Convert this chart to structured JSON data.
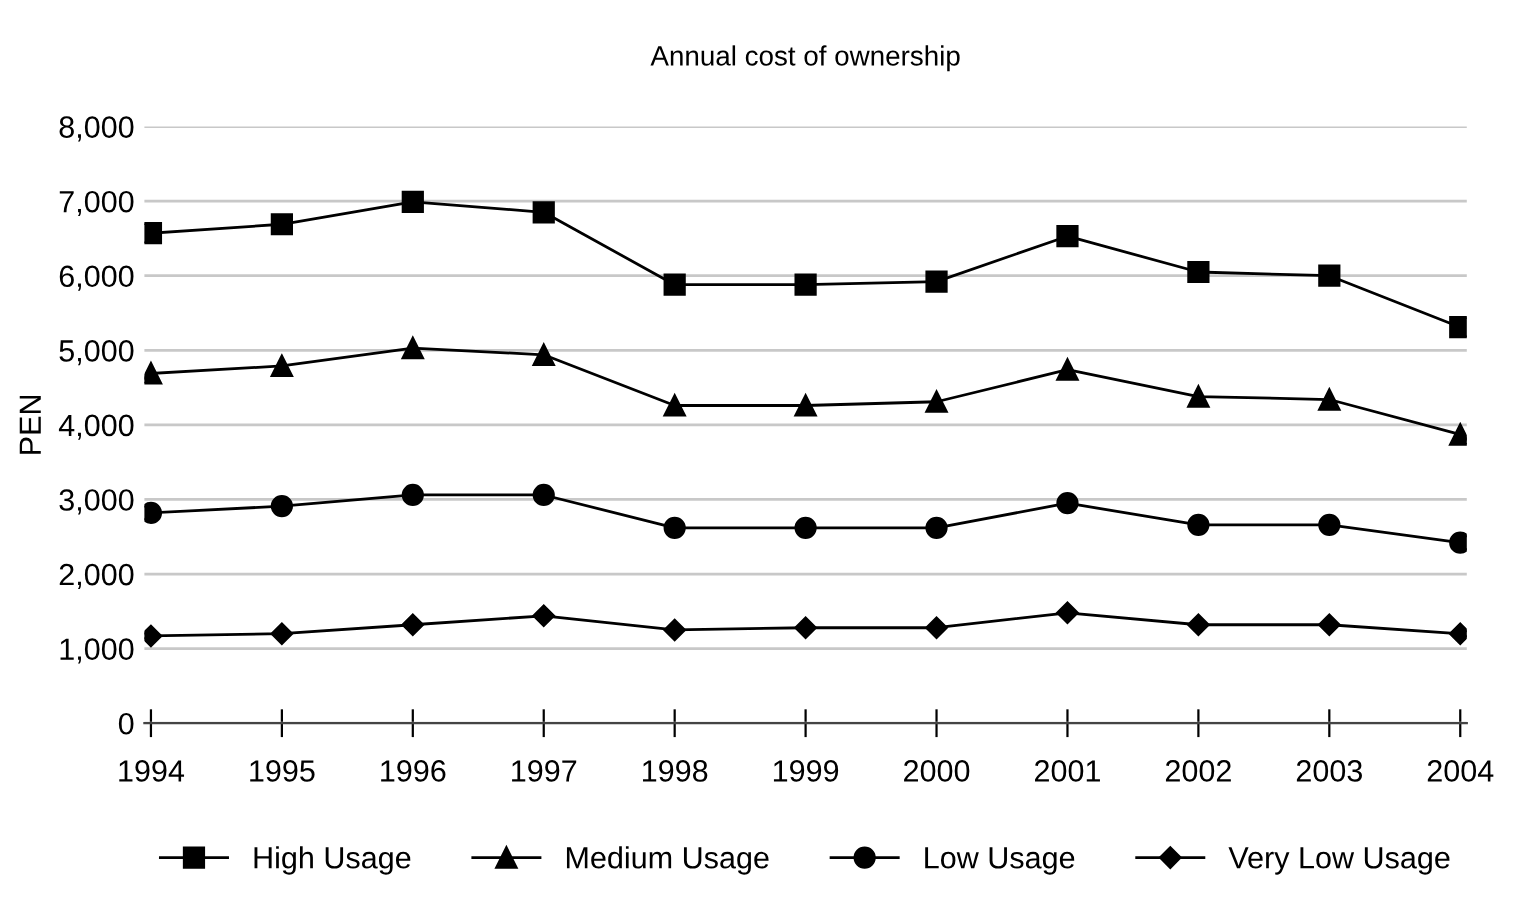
{
  "chart_data": {
    "type": "line",
    "title": "Annual cost of ownership",
    "ylabel": "PEN",
    "categories": [
      "1994",
      "1995",
      "1996",
      "1997",
      "1998",
      "1999",
      "2000",
      "2001",
      "2002",
      "2003",
      "2004"
    ],
    "series": [
      {
        "name": "High Usage",
        "color": "#000000",
        "marker": "square",
        "values": [
          6570,
          6690,
          6990,
          6850,
          5880,
          5880,
          5920,
          6530,
          6050,
          6000,
          5310
        ]
      },
      {
        "name": "Medium Usage",
        "color": "#000000",
        "marker": "triangle",
        "values": [
          4690,
          4790,
          5030,
          4940,
          4260,
          4260,
          4310,
          4740,
          4380,
          4340,
          3870
        ]
      },
      {
        "name": "Low Usage",
        "color": "#000000",
        "marker": "circle",
        "values": [
          2820,
          2910,
          3060,
          3060,
          2620,
          2620,
          2620,
          2950,
          2660,
          2660,
          2420
        ]
      },
      {
        "name": "Very Low Usage",
        "color": "#000000",
        "marker": "diamond",
        "values": [
          1170,
          1200,
          1320,
          1440,
          1250,
          1280,
          1280,
          1480,
          1320,
          1320,
          1200
        ]
      }
    ],
    "ylim": [
      0,
      8000
    ],
    "yticks": [
      {
        "value": 0,
        "label": "0"
      },
      {
        "value": 1000,
        "label": "1,000"
      },
      {
        "value": 2000,
        "label": "2,000"
      },
      {
        "value": 3000,
        "label": "3,000"
      },
      {
        "value": 4000,
        "label": "4,000"
      },
      {
        "value": 5000,
        "label": "5,000"
      },
      {
        "value": 6000,
        "label": "6,000"
      },
      {
        "value": 7000,
        "label": "7,000"
      },
      {
        "value": 8000,
        "label": "8,000"
      }
    ],
    "grid": "y",
    "legend": "bottom",
    "line_style": "solid"
  }
}
